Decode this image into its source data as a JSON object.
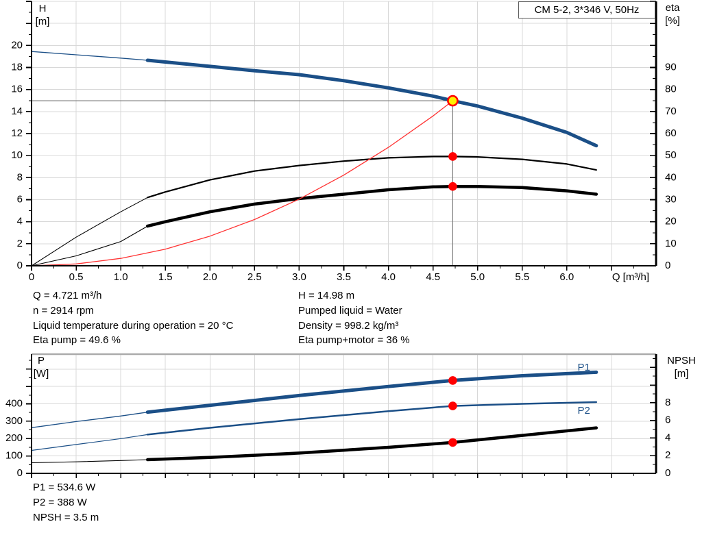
{
  "title_box": {
    "label": "CM 5-2, 3*346 V, 50Hz"
  },
  "colors": {
    "curve_blue": "#1B4F87",
    "curve_black": "#000000",
    "system_red": "#FF3333",
    "dot_red": "#FF0000",
    "duty_yellow": "#FFF000",
    "grid": "#D8D8D8",
    "top_border": "#ABABAB",
    "crosshair": "#7A7A7A",
    "axis": "#000000",
    "text": "#000000"
  },
  "chart_data": [
    {
      "type": "line",
      "title": "CM 5-2, 3*346 V, 50Hz",
      "xlabel": "Q [m³/h]",
      "x_axis": {
        "min": 0,
        "max": 7,
        "tick_step": 0.5,
        "minor_step": 0.25,
        "label_max": 6.0,
        "grid_max": 6.5,
        "show_labels": true
      },
      "left_axis": {
        "label": "H",
        "unit": "[m]",
        "min": 0,
        "max": 24,
        "tick_step": 2,
        "minor_step": 1,
        "label_max": 20
      },
      "right_axis": {
        "label": "eta",
        "unit": "[%]",
        "min": 0,
        "max": 120,
        "tick_step": 10,
        "minor_step": 5,
        "label_max": 90
      },
      "series": [
        {
          "name": "pump-curve",
          "legend": "",
          "axis": "left",
          "color_key": "curve_blue",
          "thick": 5,
          "thin": 1.3,
          "thick_from": 1.3,
          "x": [
            0,
            0.5,
            1.0,
            1.3,
            1.5,
            2.0,
            2.5,
            3.0,
            3.5,
            4.0,
            4.5,
            4.721,
            5.0,
            5.5,
            6.0,
            6.33
          ],
          "y": [
            19.45,
            19.15,
            18.85,
            18.65,
            18.5,
            18.1,
            17.7,
            17.35,
            16.8,
            16.15,
            15.4,
            14.98,
            14.5,
            13.4,
            12.1,
            10.9
          ]
        },
        {
          "name": "eta-pump-curve",
          "legend": "",
          "axis": "right",
          "color_key": "curve_black",
          "thick": 2.2,
          "thin": 1.1,
          "thick_from": 1.3,
          "x": [
            0,
            0.5,
            1.0,
            1.3,
            1.5,
            2.0,
            2.5,
            3.0,
            3.5,
            4.0,
            4.5,
            4.721,
            5.0,
            5.5,
            6.0,
            6.33
          ],
          "y": [
            0,
            13,
            24.5,
            31,
            33.5,
            39,
            43,
            45.5,
            47.5,
            49,
            49.6,
            49.6,
            49.4,
            48.3,
            46.2,
            43.5
          ]
        },
        {
          "name": "eta-pump-motor-curve",
          "legend": "",
          "axis": "right",
          "color_key": "curve_black",
          "thick": 4.5,
          "thin": 1.1,
          "thick_from": 1.3,
          "x": [
            0,
            0.5,
            1.0,
            1.3,
            1.5,
            2.0,
            2.5,
            3.0,
            3.5,
            4.0,
            4.5,
            4.721,
            5.0,
            5.5,
            6.0,
            6.33
          ],
          "y": [
            0,
            4.5,
            11,
            18,
            20,
            24.5,
            28,
            30.5,
            32.5,
            34.5,
            35.8,
            36,
            36,
            35.5,
            34,
            32.5
          ]
        },
        {
          "name": "system-curve",
          "legend": "",
          "axis": "left",
          "color_key": "system_red",
          "thick": 1.3,
          "thin": 1.3,
          "thick_from": 99,
          "x": [
            0,
            0.5,
            1.0,
            1.5,
            2.0,
            2.5,
            3.0,
            3.5,
            4.0,
            4.5,
            4.721
          ],
          "y": [
            0,
            0.17,
            0.67,
            1.51,
            2.69,
            4.2,
            6.05,
            8.23,
            10.75,
            13.6,
            14.98
          ]
        }
      ],
      "duty_point": {
        "q": 4.721,
        "h": 14.98
      },
      "markers": [
        {
          "q": 4.721,
          "v": 49.6,
          "axis": "right"
        },
        {
          "q": 4.721,
          "v": 36,
          "axis": "right"
        }
      ]
    },
    {
      "type": "line",
      "title": "",
      "xlabel": "",
      "x_axis": {
        "min": 0,
        "max": 7,
        "tick_step": 0.5,
        "minor_step": 0.25,
        "label_max": -1,
        "grid_max": 6.5,
        "show_labels": false
      },
      "left_axis": {
        "label": "P",
        "unit": "[W]",
        "min": 0,
        "max": 686,
        "tick_step": 100,
        "minor_step": 50,
        "label_max": 400
      },
      "right_axis": {
        "label": "NPSH",
        "unit": "[m]",
        "min": 0,
        "max": 13.5,
        "tick_step": 2,
        "minor_step": 1,
        "label_max": 8
      },
      "series": [
        {
          "name": "p1-curve",
          "legend": "P1",
          "axis": "left",
          "color_key": "curve_blue",
          "thick": 5,
          "thin": 1.3,
          "thick_from": 1.3,
          "x": [
            0,
            0.5,
            1.0,
            1.3,
            2.0,
            3.0,
            4.0,
            4.721,
            5.5,
            6.33
          ],
          "y": [
            263,
            298,
            330,
            352,
            392,
            448,
            500,
            534.6,
            562,
            582
          ],
          "legend_pos": {
            "q": 6.12,
            "v": 607
          }
        },
        {
          "name": "p2-curve",
          "legend": "P2",
          "axis": "left",
          "color_key": "curve_blue",
          "thick": 2.5,
          "thin": 1.2,
          "thick_from": 1.3,
          "x": [
            0,
            0.5,
            1.0,
            1.3,
            2.0,
            3.0,
            4.0,
            4.721,
            5.5,
            6.33
          ],
          "y": [
            132,
            166,
            200,
            223,
            262,
            312,
            358,
            388,
            400,
            410
          ],
          "legend_pos": {
            "q": 6.12,
            "v": 358
          }
        },
        {
          "name": "npsh-curve",
          "legend": "",
          "axis": "right",
          "color_key": "curve_black",
          "thick": 4.5,
          "thin": 1.1,
          "thick_from": 1.3,
          "x": [
            0,
            0.5,
            1.0,
            1.3,
            2.0,
            3.0,
            4.0,
            4.721,
            5.5,
            6.33
          ],
          "y": [
            1.2,
            1.3,
            1.45,
            1.55,
            1.8,
            2.3,
            2.95,
            3.5,
            4.3,
            5.15
          ]
        }
      ],
      "markers": [
        {
          "q": 4.721,
          "v": 534.6,
          "axis": "left"
        },
        {
          "q": 4.721,
          "v": 388,
          "axis": "left"
        },
        {
          "q": 4.721,
          "v": 3.5,
          "axis": "right"
        }
      ]
    }
  ],
  "annotations": {
    "col1": [
      "Q = 4.721 m³/h",
      "n = 2914 rpm",
      "Liquid temperature during operation = 20 °C",
      "Eta pump = 49.6 %"
    ],
    "col2": [
      "H = 14.98 m",
      "Pumped liquid = Water",
      "Density = 998.2 kg/m³",
      "Eta pump+motor = 36 %"
    ],
    "bottom": [
      "P1 = 534.6 W",
      "P2 = 388 W",
      "NPSH = 3.5 m"
    ]
  }
}
